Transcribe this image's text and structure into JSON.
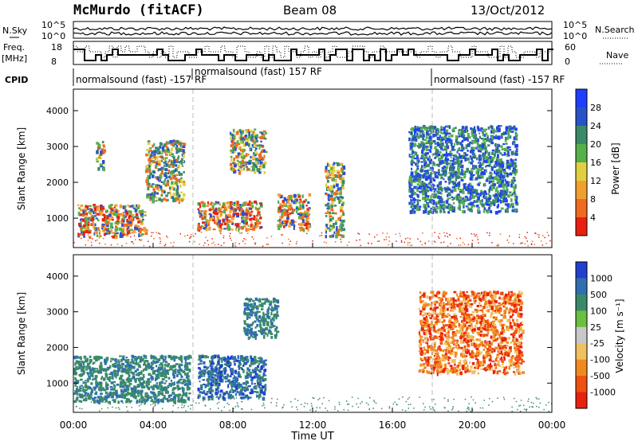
{
  "header": {
    "radar": "McMurdo (fitACF)",
    "beam": "Beam 08",
    "date": "13/Oct/2012"
  },
  "top_panels": {
    "nsky_label": "N.Sky",
    "nsky_ticks": [
      "10^5",
      "10^0"
    ],
    "nsearch_label": "N.Search",
    "nsearch_ticks": [
      "10^5",
      "10^0"
    ],
    "freq_label": "Freq.",
    "freq_unit": "[MHz]",
    "freq_ticks": [
      "18",
      "8"
    ],
    "nave_label": "Nave",
    "nave_ticks": [
      "60",
      "0"
    ],
    "cpid_label": "CPID",
    "cpid_segments": [
      {
        "label": "normalsound (fast) -157 RF",
        "start_hour": 0
      },
      {
        "label": "normalsound (fast) 157 RF",
        "start_hour": 6
      },
      {
        "label": "normalsound (fast) -157 RF",
        "start_hour": 18
      }
    ]
  },
  "chart_data": [
    {
      "type": "heatmap",
      "name": "power",
      "ylabel": "Slant Range [km]",
      "xlabel": "Time UT",
      "ylim": [
        180,
        4600
      ],
      "xlim_hours": [
        0,
        24
      ],
      "y_ticks": [
        "1000",
        "2000",
        "3000",
        "4000"
      ],
      "colorbar_label": "Power [dB]",
      "colorbar_ticks": [
        "4",
        "8",
        "12",
        "16",
        "20",
        "24",
        "28"
      ],
      "colorbar_colors": [
        "#1f3fff",
        "#2a52c8",
        "#3a8a6a",
        "#56b04a",
        "#e0d040",
        "#f0a030",
        "#f06a20",
        "#e82010"
      ],
      "approx_echo_regions": [
        {
          "hours": [
            0.2,
            3.6
          ],
          "range_km": [
            500,
            1400
          ],
          "level": "high"
        },
        {
          "hours": [
            1.1,
            1.5
          ],
          "range_km": [
            2400,
            3200
          ],
          "level": "medium"
        },
        {
          "hours": [
            3.6,
            5.5
          ],
          "range_km": [
            1500,
            3200
          ],
          "level": "medium"
        },
        {
          "hours": [
            6.2,
            9.4
          ],
          "range_km": [
            700,
            1500
          ],
          "level": "high"
        },
        {
          "hours": [
            7.8,
            9.6
          ],
          "range_km": [
            2300,
            3500
          ],
          "level": "medium"
        },
        {
          "hours": [
            10.2,
            11.8
          ],
          "range_km": [
            700,
            1700
          ],
          "level": "high"
        },
        {
          "hours": [
            12.6,
            13.5
          ],
          "range_km": [
            500,
            2600
          ],
          "level": "medium"
        },
        {
          "hours": [
            16.8,
            22.2
          ],
          "range_km": [
            1200,
            3600
          ],
          "level": "low"
        }
      ]
    },
    {
      "type": "heatmap",
      "name": "velocity",
      "ylabel": "Slant Range [km]",
      "xlabel": "Time UT",
      "ylim": [
        180,
        4600
      ],
      "xlim_hours": [
        0,
        24
      ],
      "y_ticks": [
        "1000",
        "2000",
        "3000",
        "4000"
      ],
      "colorbar_label": "Velocity [m s⁻¹]",
      "colorbar_ticks": [
        "1000",
        "500",
        "100",
        "25",
        "-25",
        "-100",
        "-500",
        "-1000"
      ],
      "colorbar_colors": [
        "#2040d0",
        "#2f6fb0",
        "#3a8a6a",
        "#6ac040",
        "#c8c8c8",
        "#f0c060",
        "#f08a20",
        "#f05010",
        "#e82010"
      ],
      "approx_echo_regions": [
        {
          "hours": [
            0,
            5.8
          ],
          "range_km": [
            500,
            1800
          ],
          "level": "positive"
        },
        {
          "hours": [
            6.2,
            9.6
          ],
          "range_km": [
            600,
            1800
          ],
          "level": "positive_strong"
        },
        {
          "hours": [
            8.5,
            10.2
          ],
          "range_km": [
            2300,
            3400
          ],
          "level": "positive"
        },
        {
          "hours": [
            17.3,
            22.5
          ],
          "range_km": [
            1300,
            3600
          ],
          "level": "negative"
        }
      ]
    }
  ],
  "x_ticks": [
    "00:00",
    "04:00",
    "08:00",
    "12:00",
    "16:00",
    "20:00",
    "00:00"
  ],
  "xlabel": "Time UT"
}
